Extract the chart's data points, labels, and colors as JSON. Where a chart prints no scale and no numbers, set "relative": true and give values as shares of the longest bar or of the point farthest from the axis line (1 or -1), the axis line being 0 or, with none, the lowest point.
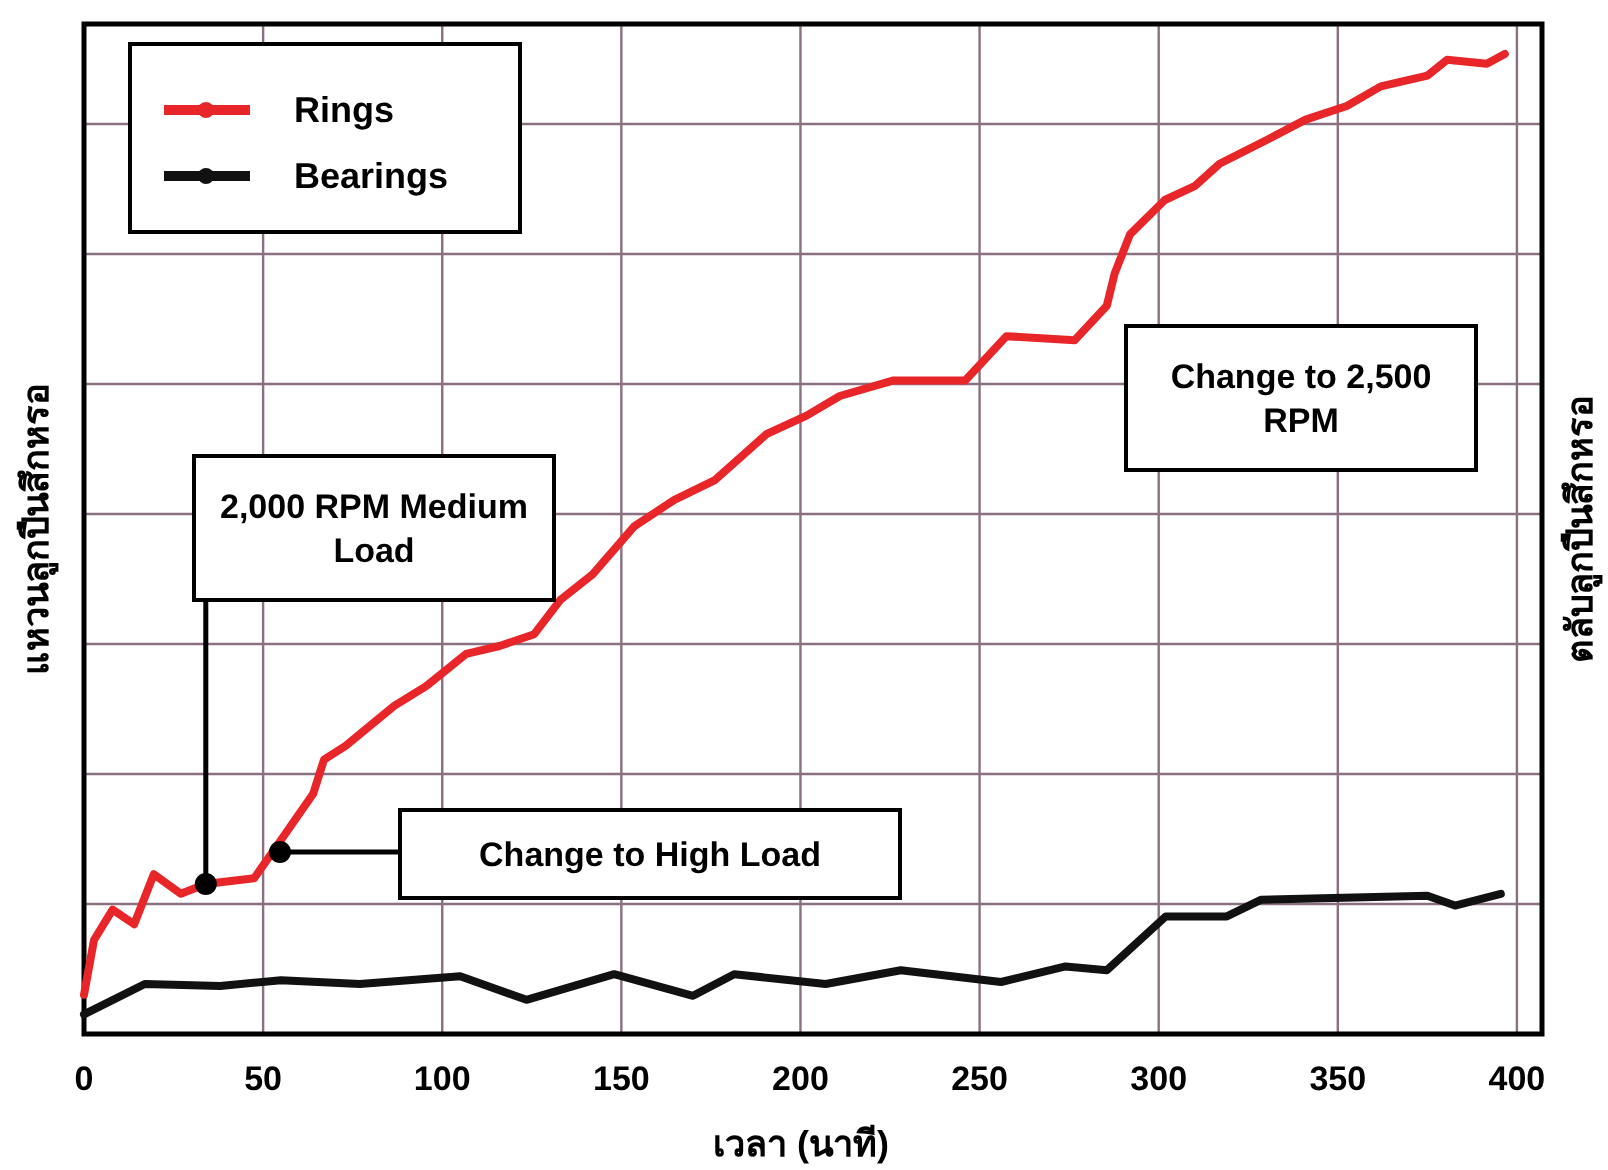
{
  "chart_data": {
    "type": "line",
    "relative": true,
    "xlabel": "เวลา (นาที)",
    "ylabel": "แหวนลูกปืนสึกหรอ",
    "y2label": "ตลับลูกปืนสึกหรอ",
    "xlim": [
      0,
      407
    ],
    "xticks": [
      0,
      50,
      100,
      150,
      200,
      250,
      300,
      350,
      400
    ],
    "grid": true,
    "legend": "top left",
    "annotations": [
      {
        "text": "2,000 RPM Medium Load",
        "x": 34,
        "y": 0.153
      },
      "Change to High Load",
      "Change to 2,500 RPM"
    ],
    "series": [
      {
        "name": "Rings",
        "color": "#e8262a",
        "x": [
          0,
          2.8,
          8,
          14,
          19.5,
          27,
          34,
          47.5,
          55,
          64,
          67,
          73,
          86.6,
          95.5,
          106.7,
          116,
          125.7,
          133,
          142,
          153.6,
          164.8,
          176,
          190.5,
          201.7,
          211,
          226,
          246,
          257.5,
          276.5,
          285.5,
          287.7,
          292,
          301.7,
          310,
          317,
          330,
          341,
          352.5,
          362,
          375,
          380.5,
          391.6,
          396.6
        ],
        "values": [
          0.04,
          0.096,
          0.127,
          0.112,
          0.163,
          0.143,
          0.153,
          0.159,
          0.198,
          0.245,
          0.28,
          0.294,
          0.335,
          0.355,
          0.388,
          0.396,
          0.408,
          0.443,
          0.469,
          0.518,
          0.545,
          0.565,
          0.612,
          0.631,
          0.651,
          0.667,
          0.667,
          0.712,
          0.708,
          0.743,
          0.776,
          0.816,
          0.851,
          0.865,
          0.888,
          0.912,
          0.933,
          0.947,
          0.967,
          0.978,
          0.994,
          0.99,
          1.0
        ]
      },
      {
        "name": "Bearings",
        "color": "#111111",
        "x": [
          0,
          17,
          38,
          55,
          77,
          105,
          123.5,
          148,
          170,
          181.5,
          207,
          228,
          256,
          274,
          285.5,
          302,
          319,
          328.5,
          375,
          382.7,
          395.5
        ],
        "values": [
          0.02,
          0.051,
          0.049,
          0.055,
          0.051,
          0.059,
          0.035,
          0.061,
          0.039,
          0.061,
          0.051,
          0.065,
          0.053,
          0.069,
          0.065,
          0.12,
          0.12,
          0.137,
          0.141,
          0.131,
          0.143
        ]
      }
    ]
  }
}
